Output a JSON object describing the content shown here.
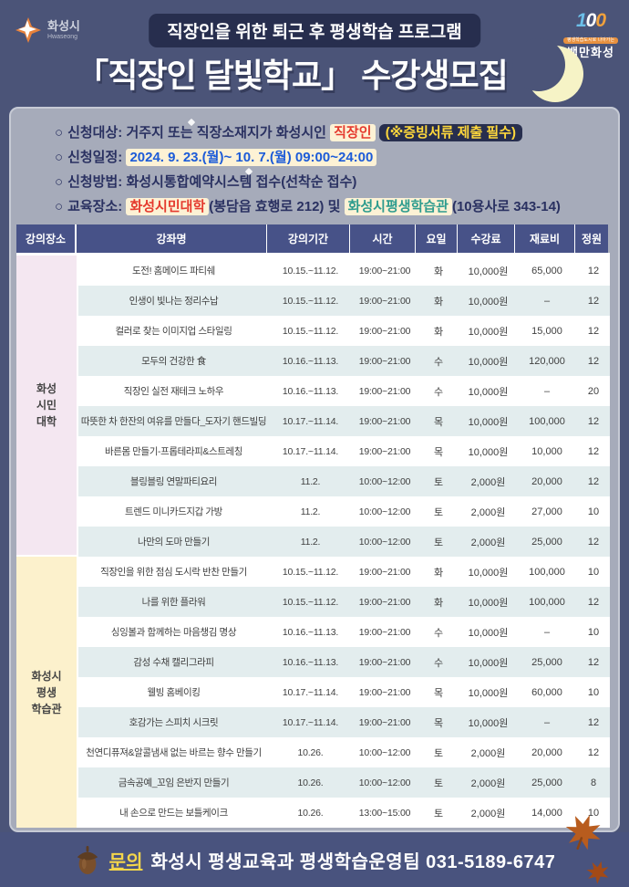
{
  "header": {
    "logo_left": {
      "name": "화성시",
      "eng": "Hwaseong"
    },
    "logo_right": {
      "digits": [
        "1",
        "0",
        "0"
      ],
      "slogan": "평생학습도시로 나아가는",
      "name": "백만화성"
    },
    "badge": "직장인을 위한 퇴근 후 평생학습 프로그램",
    "title": "「직장인 달빛학교」 수강생모집"
  },
  "info": {
    "bullet": "○",
    "lines": [
      {
        "label": "신청대상:",
        "pre": "거주지 또는 직장소재지가 화성시인",
        "highlight_red": "직장인",
        "note": "(※증빙서류 제출 필수)"
      },
      {
        "label": "신청일정:",
        "highlight_blue": "2024. 9. 23.(월)~ 10. 7.(월) 09:00~24:00"
      },
      {
        "label": "신청방법:",
        "text": "화성시통합예약시스템 접수(선착순 접수)"
      },
      {
        "label": "교육장소:",
        "venue1": "화성시민대학",
        "addr1": "(봉담읍 효행로 212)",
        "conj": "및",
        "venue2": "화성시평생학습관",
        "addr2": "(10용사로 343-14)"
      }
    ]
  },
  "table": {
    "headers": [
      "강의장소",
      "강좌명",
      "강의기간",
      "시간",
      "요일",
      "수강료",
      "재료비",
      "정원"
    ],
    "groups": [
      {
        "venue": "화성\n시민\n대학",
        "rows": [
          [
            "도전! 홈메이드 파티쉐",
            "10.15.~11.12.",
            "19:00~21:00",
            "화",
            "10,000원",
            "65,000",
            "12"
          ],
          [
            "인생이 빛나는 정리수납",
            "10.15.~11.12.",
            "19:00~21:00",
            "화",
            "10,000원",
            "–",
            "12"
          ],
          [
            "컬러로 찾는 이미지업 스타일링",
            "10.15.~11.12.",
            "19:00~21:00",
            "화",
            "10,000원",
            "15,000",
            "12"
          ],
          [
            "모두의 건강한 食",
            "10.16.~11.13.",
            "19:00~21:00",
            "수",
            "10,000원",
            "120,000",
            "12"
          ],
          [
            "직장인 실전 재테크 노하우",
            "10.16.~11.13.",
            "19:00~21:00",
            "수",
            "10,000원",
            "–",
            "20"
          ],
          [
            "따뜻한 차 한잔의 여유를 만들다_도자기 핸드빌딩",
            "10.17.~11.14.",
            "19:00~21:00",
            "목",
            "10,000원",
            "100,000",
            "12"
          ],
          [
            "바른몸 만들기-프롭테라피&스트레칭",
            "10.17.~11.14.",
            "19:00~21:00",
            "목",
            "10,000원",
            "10,000",
            "12"
          ],
          [
            "블링블링 연말파티요리",
            "11.2.",
            "10:00~12:00",
            "토",
            "2,000원",
            "20,000",
            "12"
          ],
          [
            "트렌드 미니카드지갑 가방",
            "11.2.",
            "10:00~12:00",
            "토",
            "2,000원",
            "27,000",
            "10"
          ],
          [
            "나만의 도마 만들기",
            "11.2.",
            "10:00~12:00",
            "토",
            "2,000원",
            "25,000",
            "12"
          ]
        ]
      },
      {
        "venue": "화성시\n평생\n학습관",
        "rows": [
          [
            "직장인을 위한 점심 도시락 반찬 만들기",
            "10.15.~11.12.",
            "19:00~21:00",
            "화",
            "10,000원",
            "100,000",
            "10"
          ],
          [
            "나를 위한 플라워",
            "10.15.~11.12.",
            "19:00~21:00",
            "화",
            "10,000원",
            "100,000",
            "12"
          ],
          [
            "싱잉볼과 함께하는 마음챙김 명상",
            "10.16.~11.13.",
            "19:00~21:00",
            "수",
            "10,000원",
            "–",
            "10"
          ],
          [
            "감성 수채 캘리그라피",
            "10.16.~11.13.",
            "19:00~21:00",
            "수",
            "10,000원",
            "25,000",
            "12"
          ],
          [
            "웰빙 홈베이킹",
            "10.17.~11.14.",
            "19:00~21:00",
            "목",
            "10,000원",
            "60,000",
            "10"
          ],
          [
            "호감가는 스피치 시크릿",
            "10.17.~11.14.",
            "19:00~21:00",
            "목",
            "10,000원",
            "–",
            "12"
          ],
          [
            "천연디퓨져&알콜냄새 없는 바르는 향수 만들기",
            "10.26.",
            "10:00~12:00",
            "토",
            "2,000원",
            "20,000",
            "12"
          ],
          [
            "금속공예_꼬임 은반지 만들기",
            "10.26.",
            "10:00~12:00",
            "토",
            "2,000원",
            "25,000",
            "8"
          ],
          [
            "내 손으로 만드는 보틀케이크",
            "10.26.",
            "13:00~15:00",
            "토",
            "2,000원",
            "14,000",
            "10"
          ]
        ]
      }
    ]
  },
  "footer": {
    "label": "문의",
    "text": "화성시 평생교육과 평생학습운영팀 031-5189-6747"
  }
}
